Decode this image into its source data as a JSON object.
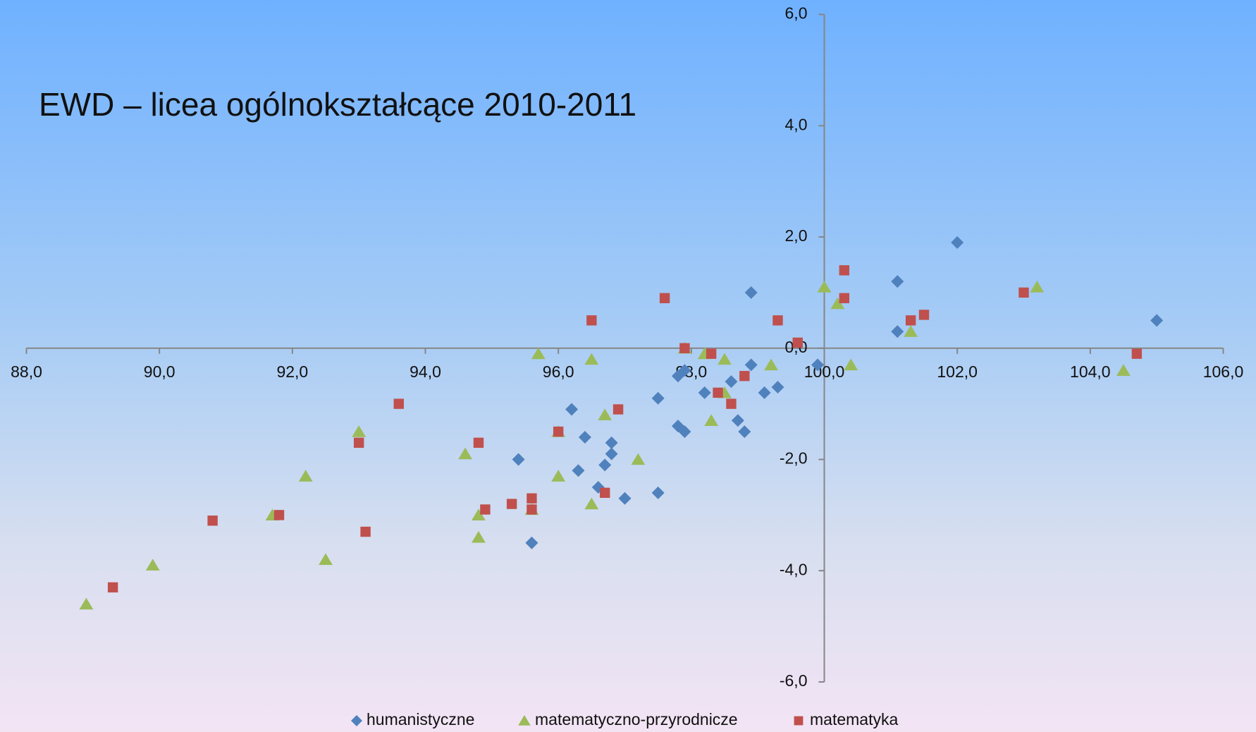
{
  "chart_data": {
    "type": "scatter",
    "title": "EWD – licea ogólnokształcące 2010-2011",
    "xlim": [
      88,
      106
    ],
    "xticks": [
      {
        "value": 88,
        "label": "88,0"
      },
      {
        "value": 90,
        "label": "90,0"
      },
      {
        "value": 92,
        "label": "92,0"
      },
      {
        "value": 94,
        "label": "94,0"
      },
      {
        "value": 96,
        "label": "96,0"
      },
      {
        "value": 98,
        "label": "98,0"
      },
      {
        "value": 100,
        "label": "100,0"
      },
      {
        "value": 102,
        "label": "102,0"
      },
      {
        "value": 104,
        "label": "104,0"
      },
      {
        "value": 106,
        "label": "106,0"
      }
    ],
    "ylim": [
      -6,
      6
    ],
    "yticks": [
      {
        "value": -6,
        "label": "-6,0"
      },
      {
        "value": -4,
        "label": "-4,0"
      },
      {
        "value": -2,
        "label": "-2,0"
      },
      {
        "value": 0,
        "label": "0,0"
      },
      {
        "value": 2,
        "label": "2,0"
      },
      {
        "value": 4,
        "label": "4,0"
      },
      {
        "value": 6,
        "label": "6,0"
      }
    ],
    "y_axis_at": 100,
    "x_axis_at": 0,
    "legend": "bottom",
    "series": [
      {
        "name": "humanistyczne",
        "color": "#4f81bd",
        "marker": "diamond",
        "x": [
          102.0,
          101.1,
          101.1,
          105.0,
          98.9,
          99.9,
          98.9,
          99.3,
          99.1,
          98.6,
          98.2,
          97.8,
          97.9,
          97.5,
          98.7,
          98.8,
          97.8,
          97.9,
          96.2,
          96.4,
          96.8,
          96.8,
          96.7,
          96.3,
          96.6,
          97.0,
          97.5,
          95.4,
          95.6
        ],
        "values": [
          1.9,
          1.2,
          0.3,
          0.5,
          1.0,
          -0.3,
          -0.3,
          -0.7,
          -0.8,
          -0.6,
          -0.8,
          -0.5,
          -0.4,
          -0.9,
          -1.3,
          -1.5,
          -1.4,
          -1.5,
          -1.1,
          -1.6,
          -1.7,
          -1.9,
          -2.1,
          -2.2,
          -2.5,
          -2.7,
          -2.6,
          -2.0,
          -3.5
        ]
      },
      {
        "name": "matematyczno-przyrodnicze",
        "color": "#9bbb59",
        "marker": "triangle",
        "x": [
          88.9,
          89.9,
          91.7,
          92.2,
          92.5,
          93.0,
          94.6,
          94.8,
          94.8,
          95.6,
          95.7,
          96.0,
          96.0,
          96.5,
          96.5,
          96.7,
          97.2,
          97.9,
          98.2,
          98.3,
          98.5,
          98.5,
          99.2,
          100.0,
          100.2,
          100.4,
          101.3,
          103.2,
          104.5
        ],
        "values": [
          -4.6,
          -3.9,
          -3.0,
          -2.3,
          -3.8,
          -1.5,
          -1.9,
          -3.0,
          -3.4,
          -2.9,
          -0.1,
          -1.5,
          -2.3,
          -0.2,
          -2.8,
          -1.2,
          -2.0,
          0.0,
          -0.1,
          -1.3,
          -0.2,
          -0.8,
          -0.3,
          1.1,
          0.8,
          -0.3,
          0.3,
          1.1,
          -0.4
        ]
      },
      {
        "name": "matematyka",
        "color": "#c0504d",
        "marker": "square",
        "x": [
          89.3,
          90.8,
          91.8,
          93.0,
          93.1,
          93.6,
          94.8,
          94.9,
          95.3,
          95.6,
          95.6,
          96.0,
          96.5,
          96.7,
          96.9,
          97.6,
          97.9,
          98.3,
          98.4,
          98.6,
          98.8,
          99.3,
          99.6,
          100.3,
          100.3,
          101.3,
          101.5,
          103.0,
          104.7
        ],
        "values": [
          -4.3,
          -3.1,
          -3.0,
          -1.7,
          -3.3,
          -1.0,
          -1.7,
          -2.9,
          -2.8,
          -2.7,
          -2.9,
          -1.5,
          0.5,
          -2.6,
          -1.1,
          0.9,
          0.0,
          -0.1,
          -0.8,
          -1.0,
          -0.5,
          0.5,
          0.1,
          1.4,
          0.9,
          0.5,
          0.6,
          1.0,
          -0.1
        ]
      }
    ]
  }
}
